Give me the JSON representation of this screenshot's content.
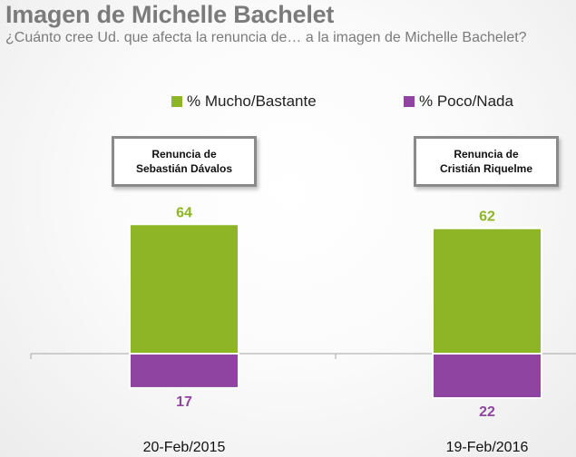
{
  "title": "Imagen de Michelle Bachelet",
  "subtitle": "¿Cuánto cree Ud. que afecta la renuncia de… a la imagen de Michelle Bachelet?",
  "legend": [
    {
      "label": "% Mucho/Bastante",
      "color": "#8db526"
    },
    {
      "label": "% Poco/Nada",
      "color": "#8e44a0"
    }
  ],
  "events": [
    {
      "line1": "Renuncia de",
      "line2": "Sebastián Dávalos"
    },
    {
      "line1": "Renuncia de",
      "line2": "Cristián Riquelme"
    }
  ],
  "chart_data": {
    "type": "bar",
    "categories": [
      "20-Feb/2015",
      "19-Feb/2016"
    ],
    "series": [
      {
        "name": "% Mucho/Bastante",
        "values": [
          64,
          62
        ],
        "color": "#8db526",
        "direction": "up"
      },
      {
        "name": "% Poco/Nada",
        "values": [
          17,
          22
        ],
        "color": "#8e44a0",
        "direction": "down"
      }
    ],
    "title": "Imagen de Michelle Bachelet",
    "legend_position": "top",
    "grid": false
  }
}
